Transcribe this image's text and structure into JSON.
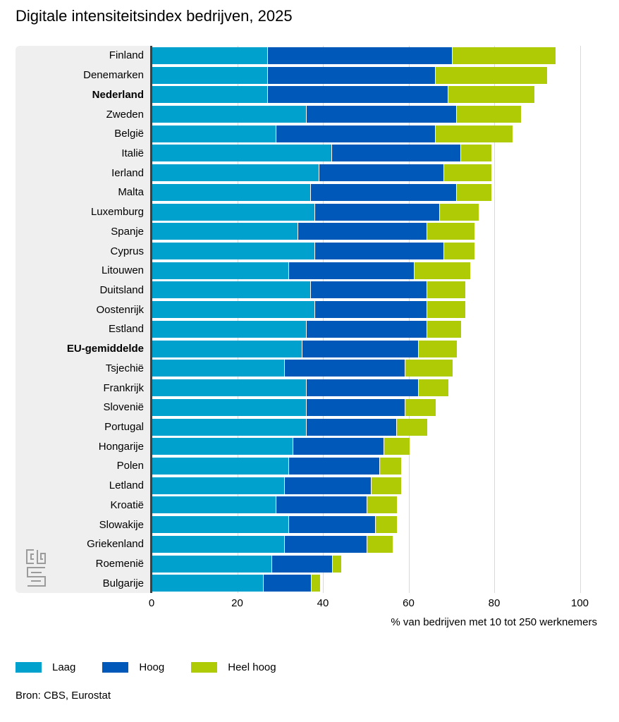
{
  "title": "Digitale intensiteitsindex bedrijven, 2025",
  "axis": {
    "ticks": [
      0,
      20,
      40,
      60,
      80,
      100
    ],
    "label": "% van bedrijven met 10 tot 250 werknemers"
  },
  "legend": [
    {
      "label": "Laag",
      "color": "#00a1cd"
    },
    {
      "label": "Hoog",
      "color": "#0058b8"
    },
    {
      "label": "Heel hoog",
      "color": "#afcb05"
    }
  ],
  "source": "Bron: CBS, Eurostat",
  "logo_name": "cbs-logo",
  "colors": {
    "panel_background": "#efefef",
    "gridline": "#d9d9d9",
    "zero_axis": "#404040",
    "laag": "#00a1cd",
    "hoog": "#0058b8",
    "heel_hoog": "#afcb05"
  },
  "chart_data": {
    "type": "bar",
    "orientation": "horizontal",
    "stacked": true,
    "title": "Digitale intensiteitsindex bedrijven, 2025",
    "xlabel": "% van bedrijven met 10 tot 250 werknemers",
    "ylabel": "",
    "xlim": [
      0,
      104
    ],
    "grid": true,
    "legend_position": "bottom",
    "categories": [
      "Finland",
      "Denemarken",
      "Nederland",
      "Zweden",
      "België",
      "Italië",
      "Ierland",
      "Malta",
      "Luxemburg",
      "Spanje",
      "Cyprus",
      "Litouwen",
      "Duitsland",
      "Oostenrijk",
      "Estland",
      "EU-gemiddelde",
      "Tsjechië",
      "Frankrijk",
      "Slovenië",
      "Portugal",
      "Hongarije",
      "Polen",
      "Letland",
      "Kroatië",
      "Slowakije",
      "Griekenland",
      "Roemenië",
      "Bulgarije"
    ],
    "bold_categories": [
      "Nederland",
      "EU-gemiddelde"
    ],
    "series": [
      {
        "name": "Laag",
        "color": "#00a1cd",
        "values": [
          27,
          27,
          27,
          36,
          29,
          42,
          39,
          37,
          38,
          34,
          38,
          32,
          37,
          38,
          36,
          35,
          31,
          36,
          36,
          36,
          33,
          32,
          31,
          29,
          32,
          31,
          28,
          26
        ]
      },
      {
        "name": "Hoog",
        "color": "#0058b8",
        "values": [
          43,
          39,
          42,
          35,
          37,
          30,
          29,
          34,
          29,
          30,
          30,
          29,
          27,
          26,
          28,
          27,
          28,
          26,
          23,
          21,
          21,
          21,
          20,
          21,
          20,
          19,
          14,
          11
        ]
      },
      {
        "name": "Heel hoog",
        "color": "#afcb05",
        "values": [
          24,
          26,
          20,
          15,
          18,
          7,
          11,
          8,
          9,
          11,
          7,
          13,
          9,
          9,
          8,
          9,
          11,
          7,
          7,
          7,
          6,
          5,
          7,
          7,
          5,
          6,
          2,
          2
        ]
      }
    ],
    "totals": [
      94,
      92,
      89,
      86,
      84,
      79,
      79,
      79,
      76,
      75,
      75,
      74,
      73,
      73,
      72,
      71,
      70,
      69,
      66,
      64,
      60,
      58,
      58,
      57,
      57,
      56,
      44,
      39
    ]
  }
}
